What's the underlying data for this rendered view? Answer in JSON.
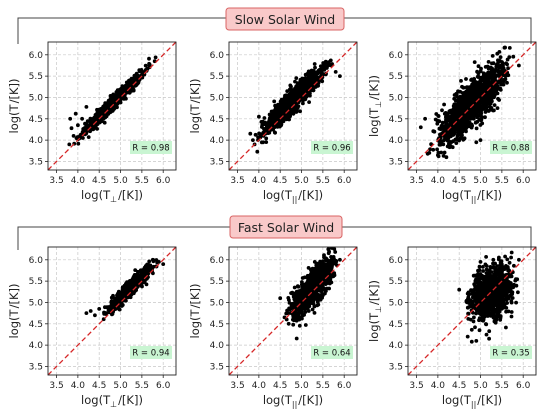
{
  "groups": [
    {
      "title": "Slow Solar Wind",
      "box_fill": "#f9c9c9",
      "box_stroke": "#d96464"
    },
    {
      "title": "Fast Solar Wind",
      "box_fill": "#f9c9c9",
      "box_stroke": "#d96464"
    }
  ],
  "colors": {
    "points": "#000000",
    "diagonal": "#d62728",
    "r_box": "#c9f5d2",
    "grid": "#c8c8c8"
  },
  "chart_data": [
    {
      "type": "scatter",
      "group": "Slow Solar Wind",
      "xlabel_main": "log(T",
      "xlabel_sub": "⊥",
      "xlabel_tail": "/[K])",
      "ylabel_main": "log(T",
      "ylabel_sub": "",
      "ylabel_tail": "/[K])",
      "xlim": [
        3.3,
        6.3
      ],
      "ylim": [
        3.3,
        6.3
      ],
      "xticks": [
        "3.5",
        "4.0",
        "4.5",
        "5.0",
        "5.5",
        "6.0"
      ],
      "yticks": [
        "3.5",
        "4.0",
        "4.5",
        "5.0",
        "5.5",
        "6.0"
      ],
      "annotation": "R = 0.98",
      "cloud": {
        "x_range": [
          3.8,
          5.85
        ],
        "spread": 0.08,
        "offset": 0.05,
        "n": 900
      },
      "points": [
        [
          3.82,
          4.5
        ],
        [
          3.85,
          4.28
        ],
        [
          3.9,
          4.1
        ],
        [
          4.0,
          4.35
        ],
        [
          4.1,
          4.5
        ],
        [
          4.2,
          4.78
        ],
        [
          5.8,
          5.85
        ],
        [
          3.95,
          4.62
        ],
        [
          4.05,
          4.05
        ],
        [
          3.8,
          3.9
        ]
      ]
    },
    {
      "type": "scatter",
      "group": "Slow Solar Wind",
      "xlabel_main": "log(T",
      "xlabel_sub": "||",
      "xlabel_tail": "/[K])",
      "ylabel_main": "log(T",
      "ylabel_sub": "",
      "ylabel_tail": "/[K])",
      "xlim": [
        3.3,
        6.3
      ],
      "ylim": [
        3.3,
        6.3
      ],
      "xticks": [
        "3.5",
        "4.0",
        "4.5",
        "5.0",
        "5.5",
        "6.0"
      ],
      "yticks": [
        "3.5",
        "4.0",
        "4.5",
        "5.0",
        "5.5",
        "6.0"
      ],
      "annotation": "R = 0.96",
      "cloud": {
        "x_range": [
          3.8,
          5.85
        ],
        "spread": 0.14,
        "offset": 0.12,
        "n": 1000
      },
      "points": [
        [
          3.8,
          4.15
        ],
        [
          3.9,
          3.9
        ],
        [
          4.0,
          4.55
        ],
        [
          5.8,
          5.6
        ],
        [
          5.9,
          5.5
        ],
        [
          4.1,
          3.95
        ]
      ]
    },
    {
      "type": "scatter",
      "group": "Slow Solar Wind",
      "xlabel_main": "log(T",
      "xlabel_sub": "||",
      "xlabel_tail": "/[K])",
      "ylabel_main": "log(T",
      "ylabel_sub": "⊥",
      "ylabel_tail": "/[K])",
      "xlim": [
        3.3,
        6.3
      ],
      "ylim": [
        3.3,
        6.3
      ],
      "xticks": [
        "3.5",
        "4.0",
        "4.5",
        "5.0",
        "5.5",
        "6.0"
      ],
      "yticks": [
        "3.5",
        "4.0",
        "4.5",
        "5.0",
        "5.5",
        "6.0"
      ],
      "annotation": "R = 0.88",
      "cloud": {
        "x_range": [
          3.7,
          5.9
        ],
        "spread": 0.26,
        "offset": 0.05,
        "n": 1300
      },
      "points": [
        [
          3.7,
          4.5
        ],
        [
          3.8,
          3.7
        ],
        [
          4.0,
          3.65
        ],
        [
          4.2,
          3.6
        ],
        [
          5.9,
          5.75
        ],
        [
          5.6,
          5.8
        ],
        [
          4.9,
          3.95
        ],
        [
          5.0,
          4.0
        ],
        [
          3.6,
          4.3
        ]
      ]
    },
    {
      "type": "scatter",
      "group": "Fast Solar Wind",
      "xlabel_main": "log(T",
      "xlabel_sub": "⊥",
      "xlabel_tail": "/[K])",
      "ylabel_main": "log(T",
      "ylabel_sub": "",
      "ylabel_tail": "/[K])",
      "xlim": [
        3.3,
        6.3
      ],
      "ylim": [
        3.3,
        6.3
      ],
      "xticks": [
        "3.5",
        "4.0",
        "4.5",
        "5.0",
        "5.5",
        "6.0"
      ],
      "yticks": [
        "3.5",
        "4.0",
        "4.5",
        "5.0",
        "5.5",
        "6.0"
      ],
      "annotation": "R = 0.94",
      "cloud": {
        "x_range": [
          4.5,
          5.95
        ],
        "spread": 0.09,
        "offset": 0.1,
        "n": 800
      },
      "points": [
        [
          4.2,
          4.75
        ],
        [
          4.3,
          4.8
        ],
        [
          4.4,
          4.7
        ],
        [
          4.5,
          4.85
        ],
        [
          5.9,
          5.95
        ],
        [
          6.0,
          5.9
        ]
      ]
    },
    {
      "type": "scatter",
      "group": "Fast Solar Wind",
      "xlabel_main": "log(T",
      "xlabel_sub": "||",
      "xlabel_tail": "/[K])",
      "ylabel_main": "log(T",
      "ylabel_sub": "",
      "ylabel_tail": "/[K])",
      "xlim": [
        3.3,
        6.3
      ],
      "ylim": [
        3.3,
        6.3
      ],
      "xticks": [
        "3.5",
        "4.0",
        "4.5",
        "5.0",
        "5.5",
        "6.0"
      ],
      "yticks": [
        "3.5",
        "4.0",
        "4.5",
        "5.0",
        "5.5",
        "6.0"
      ],
      "annotation": "R = 0.64",
      "cloud": {
        "x_range": [
          4.55,
          5.95
        ],
        "spread": 0.2,
        "offset": 0.1,
        "n": 900
      },
      "points": [
        [
          4.6,
          4.65
        ],
        [
          4.7,
          4.5
        ],
        [
          5.8,
          5.95
        ],
        [
          5.9,
          6.0
        ],
        [
          4.5,
          5.1
        ]
      ]
    },
    {
      "type": "scatter",
      "group": "Fast Solar Wind",
      "xlabel_main": "log(T",
      "xlabel_sub": "||",
      "xlabel_tail": "/[K])",
      "ylabel_main": "log(T",
      "ylabel_sub": "⊥",
      "ylabel_tail": "/[K])",
      "xlim": [
        3.3,
        6.3
      ],
      "ylim": [
        3.3,
        6.3
      ],
      "xticks": [
        "3.5",
        "4.0",
        "4.5",
        "5.0",
        "5.5",
        "6.0"
      ],
      "yticks": [
        "3.5",
        "4.0",
        "4.5",
        "5.0",
        "5.5",
        "6.0"
      ],
      "annotation": "R = 0.35",
      "cloud": {
        "x_range": [
          4.55,
          5.95
        ],
        "spread": 0.3,
        "offset": 0.0,
        "n": 1000,
        "slope": 0.35,
        "center": 5.2
      },
      "points": [
        [
          4.7,
          4.2
        ],
        [
          4.9,
          4.1
        ],
        [
          5.2,
          4.15
        ],
        [
          5.0,
          5.95
        ],
        [
          5.3,
          6.0
        ],
        [
          5.9,
          6.0
        ],
        [
          4.5,
          5.3
        ]
      ]
    }
  ]
}
